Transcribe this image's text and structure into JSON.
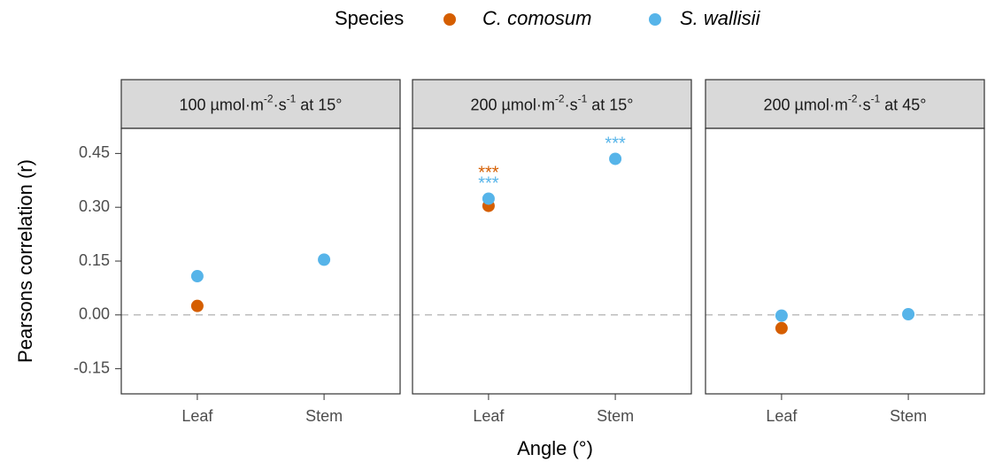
{
  "chart_data": {
    "type": "scatter",
    "legend_title": "Species",
    "x_label": "Angle (°)",
    "y_label": "Pearsons correlation (r)",
    "categories": [
      "Leaf",
      "Stem"
    ],
    "ylim": [
      -0.22,
      0.52
    ],
    "yticks": [
      -0.15,
      {
        "value": 0,
        "label": "0.00"
      },
      0.15,
      {
        "value": 0.3,
        "label": "0.30"
      },
      0.45
    ],
    "reference_line": 0,
    "facets": [
      {
        "title_parts": [
          "100 µmol·m",
          "-2",
          "·s",
          "-1",
          " at 15°"
        ]
      },
      {
        "title_parts": [
          "200 µmol·m",
          "-2",
          "·s",
          "-1",
          " at 15°"
        ]
      },
      {
        "title_parts": [
          "200 µmol·m",
          "-2",
          "·s",
          "-1",
          " at 45°"
        ]
      }
    ],
    "series": [
      {
        "name": "C. comosum",
        "color": "#D55E00",
        "values": [
          [
            0.025,
            null
          ],
          [
            0.304,
            null
          ],
          [
            -0.037,
            null
          ]
        ],
        "labels": [
          [
            null,
            null
          ],
          [
            "***",
            null
          ],
          [
            null,
            null
          ]
        ]
      },
      {
        "name": "S. wallisii",
        "color": "#56B4E9",
        "values": [
          [
            0.108,
            0.154
          ],
          [
            0.324,
            0.435
          ],
          [
            -0.002,
            0.002
          ]
        ],
        "labels": [
          [
            null,
            null
          ],
          [
            "***",
            "***"
          ],
          [
            null,
            null
          ]
        ]
      }
    ]
  }
}
